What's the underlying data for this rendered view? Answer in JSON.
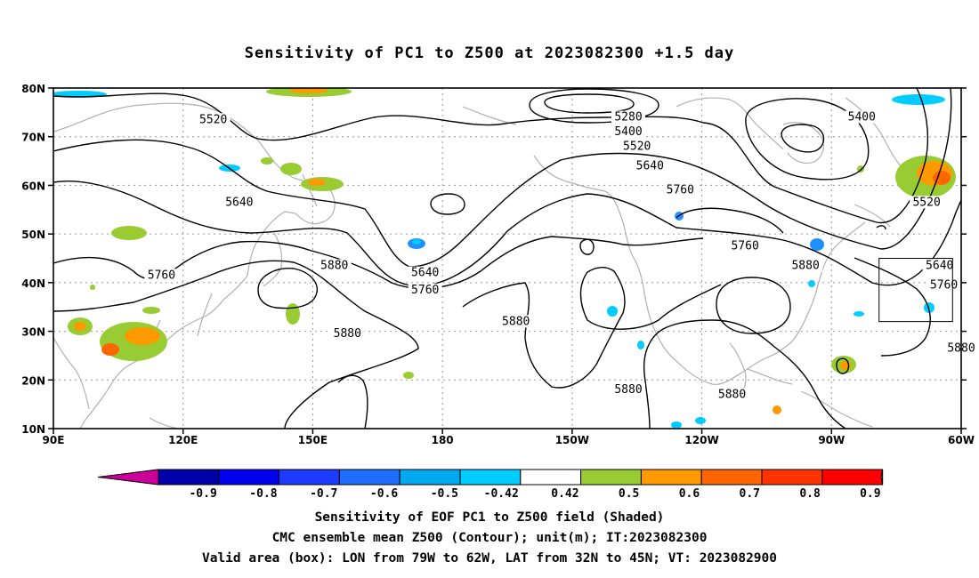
{
  "title": "Sensitivity of PC1 to Z500 at 2023082300 +1.5 day",
  "map": {
    "lon_range": [
      90,
      300
    ],
    "lat_range": [
      10,
      80
    ],
    "lat_ticks": [
      {
        "value": 80,
        "label": "80N"
      },
      {
        "value": 70,
        "label": "70N"
      },
      {
        "value": 60,
        "label": "60N"
      },
      {
        "value": 50,
        "label": "50N"
      },
      {
        "value": 40,
        "label": "40N"
      },
      {
        "value": 30,
        "label": "30N"
      },
      {
        "value": 20,
        "label": "20N"
      },
      {
        "value": 10,
        "label": "10N"
      }
    ],
    "lon_ticks": [
      {
        "value": 90,
        "label": "90E"
      },
      {
        "value": 120,
        "label": "120E"
      },
      {
        "value": 150,
        "label": "150E"
      },
      {
        "value": 180,
        "label": "180"
      },
      {
        "value": 210,
        "label": "150W"
      },
      {
        "value": 240,
        "label": "120W"
      },
      {
        "value": 270,
        "label": "90W"
      },
      {
        "value": 300,
        "label": "60W"
      }
    ],
    "valid_box": {
      "lon_min": 281,
      "lon_max": 298,
      "lat_min": 32,
      "lat_max": 45
    },
    "contour_labels": [
      {
        "text": "5520",
        "lon": 127,
        "lat": 73
      },
      {
        "text": "5280",
        "lon": 223,
        "lat": 73.5
      },
      {
        "text": "5400",
        "lon": 223,
        "lat": 70.5
      },
      {
        "text": "5520",
        "lon": 225,
        "lat": 67.5
      },
      {
        "text": "5640",
        "lon": 228,
        "lat": 63.5
      },
      {
        "text": "5400",
        "lon": 277,
        "lat": 73.5
      },
      {
        "text": "5760",
        "lon": 235,
        "lat": 58.5
      },
      {
        "text": "5640",
        "lon": 133,
        "lat": 56
      },
      {
        "text": "5520",
        "lon": 292,
        "lat": 56
      },
      {
        "text": "5760",
        "lon": 250,
        "lat": 47
      },
      {
        "text": "5880",
        "lon": 155,
        "lat": 43
      },
      {
        "text": "5760",
        "lon": 115,
        "lat": 41
      },
      {
        "text": "5640",
        "lon": 176,
        "lat": 41.5
      },
      {
        "text": "5760",
        "lon": 176,
        "lat": 38
      },
      {
        "text": "5880",
        "lon": 264,
        "lat": 43
      },
      {
        "text": "5640",
        "lon": 295,
        "lat": 43
      },
      {
        "text": "5760",
        "lon": 296,
        "lat": 39
      },
      {
        "text": "5880",
        "lon": 158,
        "lat": 29
      },
      {
        "text": "5880",
        "lon": 197,
        "lat": 31.5
      },
      {
        "text": "5880",
        "lon": 223,
        "lat": 17.5
      },
      {
        "text": "5880",
        "lon": 247,
        "lat": 16.5
      },
      {
        "text": "5880",
        "lon": 300,
        "lat": 26
      }
    ]
  },
  "colorbar": {
    "labels": [
      "-0.9",
      "-0.8",
      "-0.7",
      "-0.6",
      "-0.5",
      "-0.42",
      "0.42",
      "0.5",
      "0.6",
      "0.7",
      "0.8",
      "0.9"
    ],
    "colors": [
      "#0000a8",
      "#0000ee",
      "#1c3cff",
      "#1e6eff",
      "#00a8f0",
      "#00ccff",
      "#ffffff",
      "#99cc33",
      "#ff9900",
      "#ff6600",
      "#ff3300",
      "#ff0000"
    ],
    "left_tip_color": "#cc0099",
    "right_tip_color": "#ff99cc"
  },
  "shading": {
    "pos_light": "#99cc33",
    "pos_mid": "#ff9900",
    "pos_high": "#ff6600",
    "neg_light": "#00ccff",
    "neg_mid": "#1e90ff"
  },
  "captions": {
    "line1": "Sensitivity of EOF PC1 to Z500 field (Shaded)",
    "line2": "CMC ensemble mean Z500 (Contour); unit(m); IT:2023082300",
    "line3": "Valid area (box): LON from 79W to 62W, LAT from 32N to 45N; VT: 2023082900"
  }
}
